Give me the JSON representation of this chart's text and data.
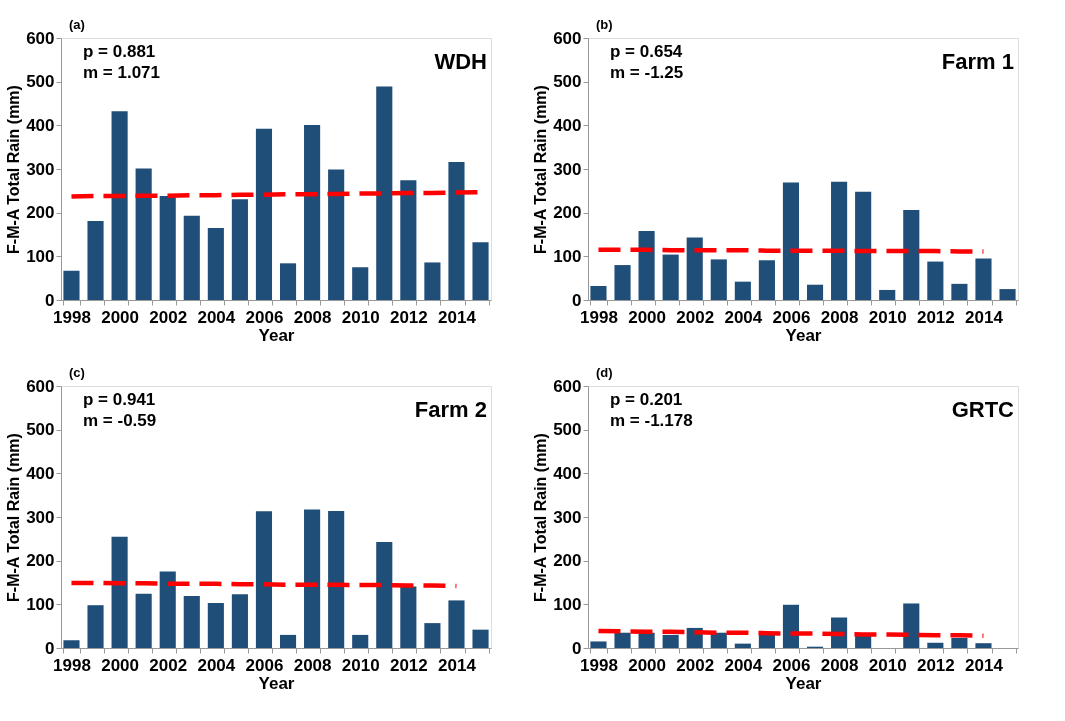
{
  "chart_data": [
    {
      "type": "bar",
      "title": "WDH",
      "xlabel": "Year",
      "ylabel": "F-M-A Total Rain (mm)",
      "annotations": [
        "(a)",
        "p = 0.881",
        "m =  1.071"
      ],
      "categories": [
        "1998",
        null,
        "2000",
        null,
        "2002",
        null,
        "2004",
        null,
        "2006",
        null,
        "2008",
        null,
        "2010",
        null,
        "2012",
        null,
        "2014",
        null
      ],
      "ylim": [
        0,
        600
      ],
      "yticks": [
        0,
        100,
        200,
        300,
        400,
        500,
        600
      ],
      "series": [
        {
          "color": "#1f4e79",
          "values": [
            67,
            181,
            432,
            301,
            238,
            193,
            165,
            231,
            392,
            84,
            401,
            299,
            75,
            489,
            274,
            86,
            316,
            132
          ]
        },
        {
          "type": "line",
          "color": "#ff0000",
          "line_style": "dashed",
          "values": [
            237,
            238,
            238,
            239,
            239,
            240,
            240,
            241,
            241,
            242,
            242,
            243,
            244,
            244,
            245,
            245,
            246,
            247
          ]
        }
      ]
    },
    {
      "type": "bar",
      "title": "Farm 1",
      "xlabel": "Year",
      "ylabel": "F-M-A Total Rain (mm)",
      "annotations": [
        "(b)",
        "p = 0.654",
        "m = -1.25"
      ],
      "categories": [
        "1998",
        null,
        "2000",
        null,
        "2002",
        null,
        "2004",
        null,
        "2006",
        null,
        "2008",
        null,
        "2010",
        null,
        "2012",
        null,
        "2014",
        null
      ],
      "ylim": [
        0,
        600
      ],
      "yticks": [
        0,
        100,
        200,
        300,
        400,
        500,
        600
      ],
      "series": [
        {
          "color": "#1f4e79",
          "values": [
            32,
            80,
            158,
            104,
            143,
            93,
            42,
            91,
            269,
            35,
            271,
            248,
            23,
            206,
            88,
            37,
            95,
            25
          ]
        },
        {
          "type": "line",
          "color": "#ff0000",
          "line_style": "dashed",
          "values": [
            115,
            115,
            115,
            114,
            114,
            114,
            114,
            113,
            113,
            113,
            113,
            112,
            112,
            112,
            112,
            111,
            111,
            null
          ]
        }
      ]
    },
    {
      "type": "bar",
      "title": "Farm 2",
      "xlabel": "Year",
      "ylabel": "F-M-A Total Rain (mm)",
      "annotations": [
        "(c)",
        "p = 0.941",
        "m = -0.59"
      ],
      "categories": [
        "1998",
        null,
        "2000",
        null,
        "2002",
        null,
        "2004",
        null,
        "2006",
        null,
        "2008",
        null,
        "2010",
        null,
        "2012",
        null,
        "2014",
        null
      ],
      "ylim": [
        0,
        600
      ],
      "yticks": [
        0,
        100,
        200,
        300,
        400,
        500,
        600
      ],
      "series": [
        {
          "color": "#1f4e79",
          "values": [
            18,
            98,
            255,
            124,
            175,
            119,
            103,
            123,
            313,
            30,
            317,
            314,
            30,
            243,
            141,
            57,
            109,
            42
          ]
        },
        {
          "type": "line",
          "color": "#ff0000",
          "line_style": "dashed",
          "values": [
            149,
            149,
            148,
            148,
            147,
            147,
            147,
            146,
            146,
            145,
            145,
            145,
            144,
            144,
            143,
            143,
            142,
            null
          ]
        }
      ]
    },
    {
      "type": "bar",
      "title": "GRTC",
      "xlabel": "Year",
      "ylabel": "F-M-A Total Rain (mm)",
      "annotations": [
        "(d)",
        "p = 0.201",
        "m = -1.178"
      ],
      "categories": [
        "1998",
        null,
        "2000",
        null,
        "2002",
        null,
        "2004",
        null,
        "2006",
        null,
        "2008",
        null,
        "2010",
        null,
        "2012",
        null,
        "2014",
        null
      ],
      "ylim": [
        0,
        600
      ],
      "yticks": [
        0,
        100,
        200,
        300,
        400,
        500,
        600
      ],
      "series": [
        {
          "color": "#1f4e79",
          "values": [
            15,
            35,
            35,
            30,
            46,
            35,
            10,
            31,
            99,
            3,
            70,
            29,
            null,
            102,
            12,
            23,
            11,
            null
          ]
        },
        {
          "type": "line",
          "color": "#ff0000",
          "line_style": "dashed",
          "values": [
            39,
            38,
            37,
            37,
            36,
            35,
            35,
            34,
            33,
            33,
            32,
            31,
            31,
            30,
            29,
            29,
            28,
            null
          ]
        }
      ]
    }
  ]
}
